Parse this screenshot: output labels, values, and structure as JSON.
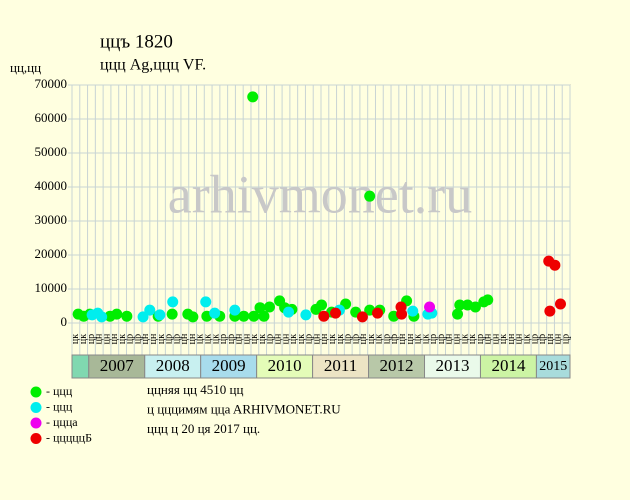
{
  "chart_data": {
    "type": "scatter",
    "title": "ццъ 1820",
    "subtitle": "ццц Ag,ццц VF.",
    "y_label": "цц,цц",
    "watermark": "arhivmonet.ru",
    "notes": [
      "ццняя цц 4510 цц",
      "ц цццимям ццa ARHIVMONET.RU",
      "ццц ц 20 ця 2017 цц."
    ],
    "xlim": [
      2006.7,
      2015.6
    ],
    "ylim": [
      0,
      70000
    ],
    "yticks": [
      0,
      10000,
      20000,
      30000,
      40000,
      50000,
      60000,
      70000
    ],
    "grid": true,
    "years": [
      null,
      "2007",
      "2008",
      "2009",
      "2010",
      "2011",
      "2012",
      "2013",
      "2014",
      "2015"
    ],
    "year_colors": [
      "#80d8b0",
      "#a8b898",
      "#c8f0f0",
      "#a8dcec",
      "#e4fcb8",
      "#ece4c4",
      "#b8c8a8",
      "#eafaea",
      "#ccf4a4",
      "#a8dcdc"
    ],
    "x_labels": [
      "цк",
      "цк",
      "цр",
      "цн",
      "цн",
      "цн",
      "цк",
      "цр",
      "цр",
      "цн",
      "цн",
      "цк",
      "цр",
      "цр",
      "цн",
      "цн",
      "цк",
      "цк",
      "цк",
      "цр",
      "цр",
      "цн",
      "цн",
      "цк",
      "цк",
      "цр",
      "цн",
      "цн",
      "цк",
      "цк",
      "цр",
      "цн",
      "цн",
      "цк",
      "цк",
      "цр",
      "цр",
      "цн",
      "цк",
      "цк",
      "цр",
      "цр",
      "цн",
      "цн",
      "цк",
      "цк",
      "цр",
      "цр",
      "цн",
      "цн",
      "цк",
      "цк",
      "цр",
      "цн",
      "цн",
      "цк",
      "цн",
      "цн",
      "цк",
      "цр",
      "цр",
      "цн",
      "цн",
      "цр"
    ],
    "series": [
      {
        "name": "- ццц",
        "color": "#00ee00",
        "x": [
          2006.81,
          2006.91,
          2007.02,
          2007.38,
          2007.5,
          2007.68,
          2008.24,
          2008.49,
          2008.77,
          2008.86,
          2009.11,
          2009.34,
          2009.61,
          2009.77,
          2009.93,
          2009.95,
          2010.06,
          2010.13,
          2010.23,
          2010.41,
          2010.5,
          2010.63,
          2011.06,
          2011.16,
          2011.34,
          2011.59,
          2011.77,
          2012.02,
          2012.02,
          2012.2,
          2012.45,
          2012.68,
          2012.81,
          2013.59,
          2013.63,
          2013.77,
          2013.91,
          2014.06,
          2014.13
        ],
        "values": [
          2600,
          2000,
          2600,
          2000,
          2600,
          2000,
          2000,
          2600,
          2600,
          1800,
          2000,
          2000,
          2000,
          2000,
          66500,
          2000,
          4500,
          2000,
          4700,
          6500,
          4500,
          4000,
          4000,
          5300,
          3200,
          5600,
          3200,
          37300,
          3800,
          3800,
          2000,
          6500,
          2000,
          2600,
          5300,
          5300,
          4700,
          6200,
          6800
        ]
      },
      {
        "name": "- ццц",
        "color": "#00eeee",
        "x": [
          2007.06,
          2007.16,
          2007.23,
          2007.97,
          2008.09,
          2008.27,
          2008.5,
          2009.09,
          2009.25,
          2009.61,
          2010.57,
          2010.88,
          2011.48,
          2012.79,
          2013.06,
          2013.13
        ],
        "values": [
          2400,
          2900,
          1800,
          1800,
          3800,
          2400,
          6200,
          6200,
          2900,
          3800,
          3200,
          2400,
          3800,
          3500,
          2600,
          2900
        ]
      },
      {
        "name": "- ццца",
        "color": "#ee00ee",
        "x": [
          2013.09
        ],
        "values": [
          4700
        ]
      },
      {
        "name": "- цццццБ",
        "color": "#ee0000",
        "x": [
          2011.2,
          2011.41,
          2011.89,
          2012.16,
          2012.58,
          2012.59,
          2015.24,
          2015.22,
          2015.33,
          2015.43
        ],
        "values": [
          2000,
          2900,
          1800,
          2900,
          4700,
          2600,
          3500,
          18200,
          17000,
          5600
        ]
      }
    ]
  }
}
